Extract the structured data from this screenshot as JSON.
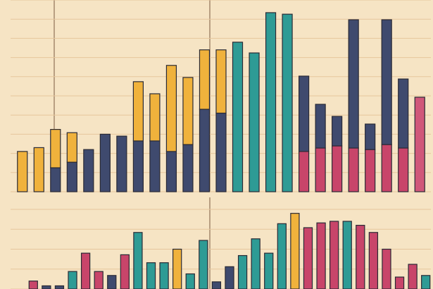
{
  "chart_data": [
    {
      "type": "bar",
      "stacked": true,
      "grid": true,
      "ylim": [
        0,
        100
      ],
      "yticks": [
        0,
        10,
        20,
        30,
        40,
        50,
        60,
        70,
        80,
        90,
        100
      ],
      "categories": [
        null,
        null,
        null,
        null,
        null,
        null,
        null,
        null,
        null,
        null,
        null,
        null,
        null,
        null,
        null,
        null,
        null,
        null,
        null,
        null,
        null,
        null,
        null,
        null,
        null
      ],
      "series": [
        {
          "values": [
            0,
            0,
            12.5,
            15.4,
            22,
            30,
            29,
            26.5,
            26.5,
            21,
            24.6,
            43,
            41,
            0,
            0,
            0,
            0,
            21,
            22.8,
            23.9,
            22.8,
            22,
            24.6,
            22.8,
            49.3
          ],
          "colors": [
            "#f0b23c",
            "#f0b23c",
            "#3f4a6e",
            "#3f4a6e",
            "#3f4a6e",
            "#3f4a6e",
            "#3f4a6e",
            "#3f4a6e",
            "#3f4a6e",
            "#3f4a6e",
            "#3f4a6e",
            "#3f4a6e",
            "#3f4a6e",
            "#2e9b95",
            "#2e9b95",
            "#2e9b95",
            "#2e9b95",
            "#c8456a",
            "#c8456a",
            "#c8456a",
            "#c8456a",
            "#c8456a",
            "#c8456a",
            "#c8456a",
            "#d0577a"
          ]
        },
        {
          "values": [
            21,
            23,
            20,
            15.4,
            0,
            0,
            0,
            30.9,
            24.6,
            44.9,
            35,
            31,
            33,
            78,
            72.4,
            93.4,
            92.6,
            39.3,
            22.8,
            15.4,
            66.9,
            13.3,
            65.1,
            36,
            0
          ],
          "colors": [
            "#f0b23c",
            "#f0b23c",
            "#f0b23c",
            "#f0b23c",
            "#3f4a6e",
            "#3f4a6e",
            "#3f4a6e",
            "#f0b23c",
            "#f0b23c",
            "#f0b23c",
            "#f0b23c",
            "#f0b23c",
            "#f0b23c",
            "#2e9b95",
            "#2e9b95",
            "#2e9b95",
            "#2e9b95",
            "#3f4a6e",
            "#3f4a6e",
            "#3f4a6e",
            "#3f4a6e",
            "#3f4a6e",
            "#3f4a6e",
            "#3f4a6e",
            "#d0577a"
          ]
        }
      ]
    },
    {
      "type": "bar",
      "stacked": true,
      "grid": true,
      "ylim": [
        0,
        100
      ],
      "yticks": [
        0,
        25,
        50,
        75,
        100
      ],
      "categories": [
        null,
        null,
        null,
        null,
        null,
        null,
        null,
        null,
        null,
        null,
        null,
        null,
        null,
        null,
        null,
        null,
        null,
        null,
        null,
        null,
        null,
        null,
        null,
        null,
        null,
        null,
        null,
        null,
        null,
        null,
        null
      ],
      "series": [
        {
          "values": [
            10,
            4,
            4,
            22,
            45,
            22,
            17,
            43,
            71,
            33,
            33,
            50,
            19,
            61,
            9,
            28,
            42,
            63,
            45,
            82,
            95,
            77,
            83,
            85,
            85,
            80,
            71,
            50,
            15,
            31,
            17
          ],
          "colors": [
            "#c8456a",
            "#3f4a6e",
            "#3f4a6e",
            "#2e9b95",
            "#c8456a",
            "#c8456a",
            "#3f4a6e",
            "#c8456a",
            "#2e9b95",
            "#2e9b95",
            "#2e9b95",
            "#f0b23c",
            "#2e9b95",
            "#2e9b95",
            "#3f4a6e",
            "#3f4a6e",
            "#2e9b95",
            "#2e9b95",
            "#2e9b95",
            "#2e9b95",
            "#f0b23c",
            "#c8456a",
            "#c8456a",
            "#c8456a",
            "#2e9b95",
            "#c8456a",
            "#c8456a",
            "#c8456a",
            "#c8456a",
            "#c8456a",
            "#2e9b95"
          ]
        }
      ]
    }
  ]
}
